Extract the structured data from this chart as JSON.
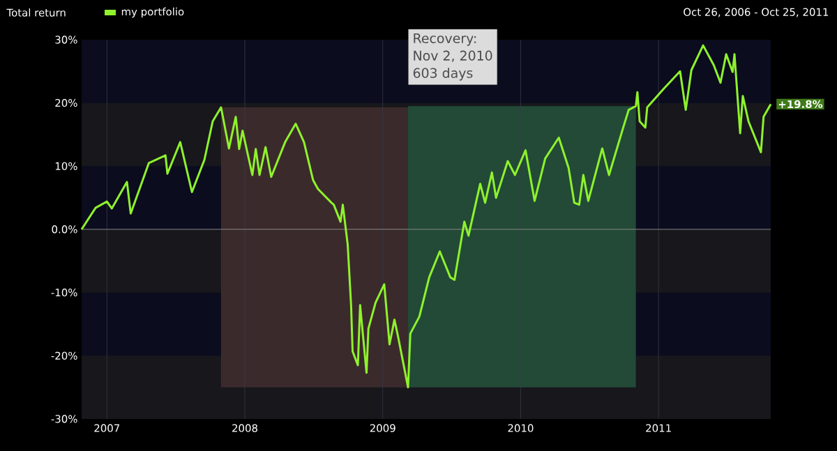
{
  "chart_data": {
    "type": "line",
    "title": "Total return",
    "subtitle": "Oct 26, 2006 - Oct 25, 2011",
    "annotations": [
      "Recovery:",
      "Nov 2, 2010",
      "603 days"
    ],
    "x": [
      "2006-10-26",
      "2006-12-02",
      "2007-01-01",
      "2007-01-14",
      "2007-02-23",
      "2007-03-05",
      "2007-04-22",
      "2007-06-05",
      "2007-06-10",
      "2007-07-14",
      "2007-08-14",
      "2007-09-16",
      "2007-10-08",
      "2007-10-30",
      "2007-11-20",
      "2007-12-08",
      "2007-12-17",
      "2007-12-26",
      "2008-01-21",
      "2008-01-30",
      "2008-02-09",
      "2008-02-25",
      "2008-03-11",
      "2008-04-17",
      "2008-05-15",
      "2008-06-06",
      "2008-06-30",
      "2008-07-13",
      "2008-08-18",
      "2008-08-24",
      "2008-09-11",
      "2008-09-17",
      "2008-09-30",
      "2008-10-09",
      "2008-10-13",
      "2008-10-27",
      "2008-11-02",
      "2008-11-19",
      "2008-11-24",
      "2008-12-13",
      "2009-01-05",
      "2009-01-19",
      "2009-02-01",
      "2009-02-11",
      "2009-03-09",
      "2009-03-15",
      "2009-04-08",
      "2009-05-04",
      "2009-06-01",
      "2009-06-29",
      "2009-07-10",
      "2009-08-05",
      "2009-08-16",
      "2009-09-16",
      "2009-09-29",
      "2009-10-17",
      "2009-10-28",
      "2009-11-28",
      "2009-12-17",
      "2010-01-14",
      "2010-02-07",
      "2010-03-07",
      "2010-04-12",
      "2010-05-08",
      "2010-05-23",
      "2010-06-05",
      "2010-06-16",
      "2010-06-29",
      "2010-08-05",
      "2010-08-23",
      "2010-09-29",
      "2010-10-14",
      "2010-11-02",
      "2010-11-06",
      "2010-11-12",
      "2010-11-27",
      "2010-12-02",
      "2011-01-14",
      "2011-02-27",
      "2011-03-14",
      "2011-03-29",
      "2011-04-29",
      "2011-05-27",
      "2011-06-14",
      "2011-06-29",
      "2011-07-16",
      "2011-07-21",
      "2011-08-05",
      "2011-08-12",
      "2011-08-27",
      "2011-09-29",
      "2011-10-06",
      "2011-10-25"
    ],
    "series": [
      {
        "name": "my portfolio",
        "color": "#8ef22c",
        "values": [
          0,
          3.4,
          4.4,
          3.3,
          7.5,
          2.5,
          10.5,
          11.7,
          8.8,
          13.8,
          5.9,
          11,
          17.1,
          19.3,
          12.8,
          17.8,
          12.7,
          15.6,
          8.6,
          12.7,
          8.6,
          13,
          8.3,
          13.8,
          16.7,
          13.8,
          7.8,
          6.4,
          4.2,
          3.9,
          1.2,
          3.9,
          -2.4,
          -12,
          -19.3,
          -21.5,
          -12,
          -22.7,
          -15.7,
          -11.6,
          -8.7,
          -18.2,
          -14.3,
          -17.1,
          -25,
          -16.5,
          -13.8,
          -7.6,
          -3.5,
          -7.6,
          -8,
          1.2,
          -1,
          7.2,
          4.2,
          9,
          5,
          10.8,
          8.6,
          12.5,
          4.5,
          11.2,
          14.5,
          9.7,
          4.2,
          3.9,
          8.6,
          4.5,
          12.8,
          8.6,
          16,
          18.9,
          19.5,
          21.7,
          17.1,
          16.1,
          19.3,
          22.2,
          25,
          18.9,
          25.2,
          29.1,
          26,
          23.2,
          27.7,
          24.9,
          27.7,
          15.2,
          21.1,
          17.1,
          12.2,
          17.8,
          19.8
        ],
        "value_labels": [
          null,
          null,
          null,
          null,
          null,
          null,
          null,
          null,
          null,
          null,
          null,
          null,
          null,
          null,
          null,
          null,
          null,
          null,
          null,
          null,
          null,
          null,
          null,
          null,
          null,
          null,
          null,
          null,
          null,
          null,
          null,
          null,
          null,
          null,
          null,
          null,
          null,
          null,
          null,
          null,
          null,
          null,
          null,
          null,
          null,
          null,
          null,
          null,
          null,
          null,
          null,
          null,
          null,
          null,
          null,
          null,
          null,
          null,
          null,
          null,
          null,
          null,
          null,
          null,
          null,
          null,
          null,
          null,
          null,
          null,
          null,
          null,
          null,
          null,
          null,
          null,
          null,
          null,
          null,
          null,
          null,
          null,
          null,
          null,
          null,
          null,
          null,
          null,
          null,
          null,
          null,
          null,
          "+19.8%"
        ]
      }
    ],
    "xlim": [
      "2006-10-26",
      "2011-10-25"
    ],
    "xticks": [
      "2007",
      "2008",
      "2009",
      "2010",
      "2011"
    ],
    "ylim": [
      -30,
      30
    ],
    "yticks": [
      {
        "value": -30,
        "label": "-30%"
      },
      {
        "value": -20,
        "label": "-20%"
      },
      {
        "value": -10,
        "label": "-10%"
      },
      {
        "value": 0,
        "label": "0.0%"
      },
      {
        "value": 10,
        "label": "10%"
      },
      {
        "value": 20,
        "label": "20%"
      },
      {
        "value": 30,
        "label": "30%"
      }
    ],
    "bands": [
      {
        "axis": "x",
        "from": "2007-10-30",
        "to": "2009-03-09",
        "color": "#3b2a2b"
      },
      {
        "axis": "x",
        "from": "2009-03-09",
        "to": "2010-11-02",
        "color": "#224a37"
      }
    ],
    "ref_lines": [
      {
        "axis": "y",
        "value": 0,
        "color": "#8a8a8a"
      }
    ],
    "grid": true,
    "legend": "top left",
    "marker": "none",
    "line_style": "solid"
  }
}
